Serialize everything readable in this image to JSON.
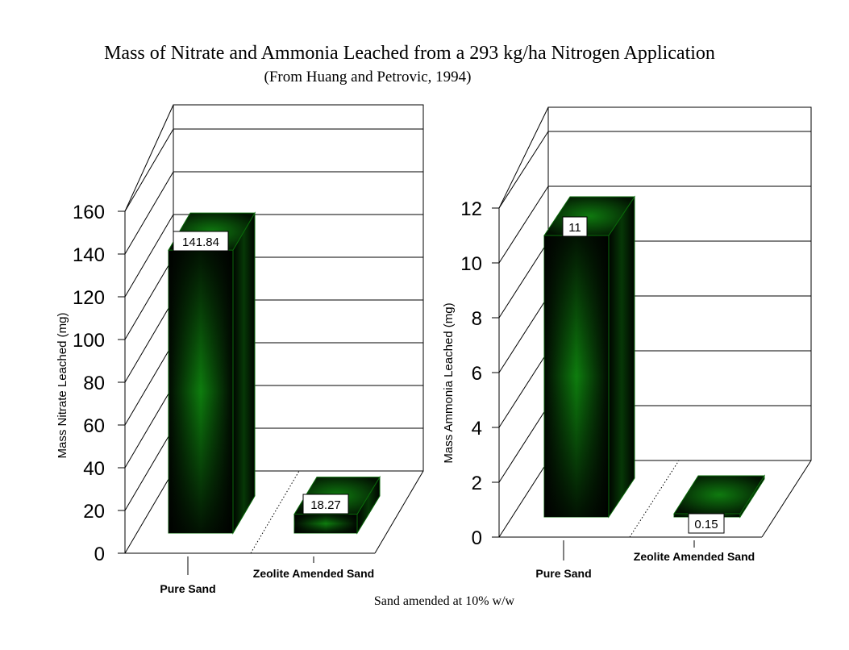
{
  "title": "Mass of Nitrate and Ammonia Leached from a 293 kg/ha Nitrogen Application",
  "subtitle": "(From Huang and Petrovic, 1994)",
  "footer_label": "Sand amended at 10% w/w",
  "colors": {
    "bar_dark": "#021a02",
    "bar_light": "#0c8a0c",
    "bar_edge": "#0a6a0a",
    "grid": "#000000"
  },
  "chart_data": [
    {
      "type": "bar",
      "categories": [
        "Pure Sand",
        "Zeolite Amended Sand"
      ],
      "values": [
        141.84,
        18.27
      ],
      "value_labels": [
        "141.84",
        "18.27"
      ],
      "title": "",
      "xlabel": "",
      "ylabel": "Mass Nitrate Leached (mg)",
      "ylim": [
        0,
        160
      ],
      "yticks": [
        "0",
        "20",
        "40",
        "60",
        "80",
        "100",
        "120",
        "140",
        "160"
      ],
      "grid": true,
      "three_d": true
    },
    {
      "type": "bar",
      "categories": [
        "Pure Sand",
        "Zeolite Amended Sand"
      ],
      "values": [
        11,
        0.15
      ],
      "value_labels": [
        "11",
        "0.15"
      ],
      "title": "",
      "xlabel": "",
      "ylabel": "Mass Ammonia Leached (mg)",
      "ylim": [
        0,
        12
      ],
      "yticks": [
        "0",
        "2",
        "4",
        "6",
        "8",
        "10",
        "12"
      ],
      "grid": true,
      "three_d": true
    }
  ]
}
